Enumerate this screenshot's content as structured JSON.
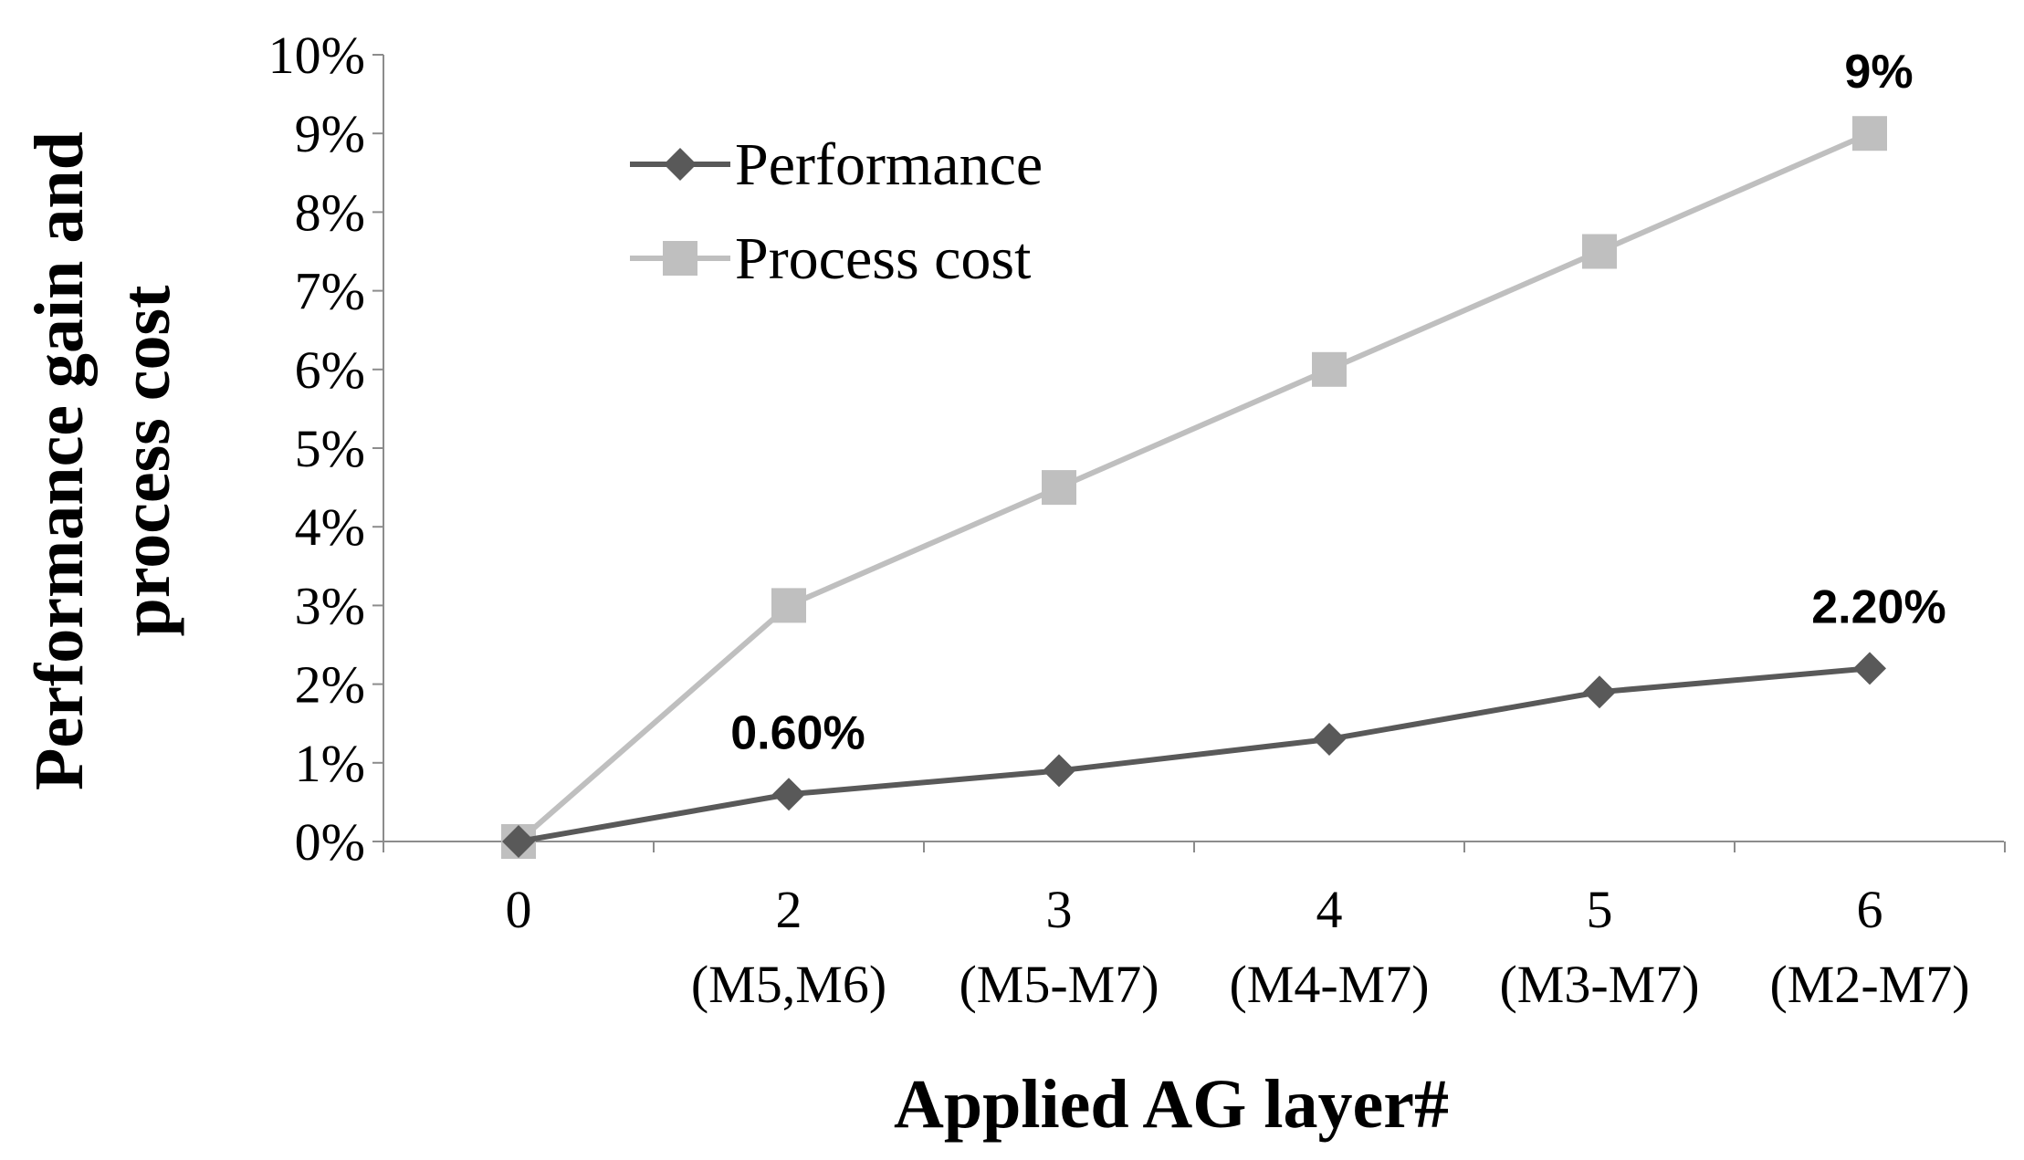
{
  "chart_data": {
    "type": "line",
    "title": "",
    "xlabel": "Applied AG layer#",
    "ylabel_lines": [
      "Performance gain and",
      "process cost"
    ],
    "categories": [
      {
        "label": "0",
        "sublabel": ""
      },
      {
        "label": "2",
        "sublabel": "(M5,M6)"
      },
      {
        "label": "3",
        "sublabel": "(M5-M7)"
      },
      {
        "label": "4",
        "sublabel": "(M4-M7)"
      },
      {
        "label": "5",
        "sublabel": "(M3-M7)"
      },
      {
        "label": "6",
        "sublabel": "(M2-M7)"
      }
    ],
    "ylim": [
      0,
      10
    ],
    "yticks": [
      "0%",
      "1%",
      "2%",
      "3%",
      "4%",
      "5%",
      "6%",
      "7%",
      "8%",
      "9%",
      "10%"
    ],
    "grid": false,
    "legend_position": "top-left",
    "series": [
      {
        "name": "Performance",
        "marker": "diamond",
        "color": "#595959",
        "values": [
          0,
          0.6,
          0.9,
          1.3,
          1.9,
          2.2
        ]
      },
      {
        "name": "Process cost",
        "marker": "square",
        "color": "#bfbfbf",
        "values": [
          0,
          3.0,
          4.5,
          6.0,
          7.5,
          9.0
        ]
      }
    ],
    "annotations": [
      {
        "text": "0.60%",
        "series": 0,
        "index": 1
      },
      {
        "text": "2.20%",
        "series": 0,
        "index": 5
      },
      {
        "text": "9%",
        "series": 1,
        "index": 5
      }
    ]
  }
}
